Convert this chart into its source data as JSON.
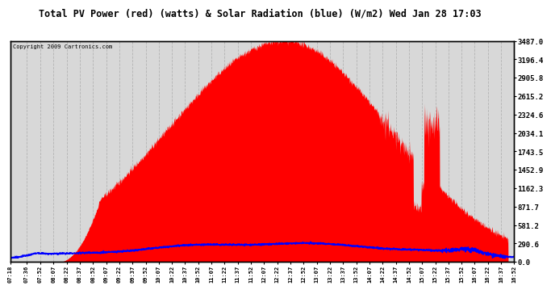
{
  "title": "Total PV Power (red) (watts) & Solar Radiation (blue) (W/m2) Wed Jan 28 17:03",
  "copyright": "Copyright 2009 Cartronics.com",
  "background_color": "#ffffff",
  "plot_bg_color": "#d8d8d8",
  "grid_color": "#aaaaaa",
  "right_yticks": [
    0.0,
    290.6,
    581.2,
    871.7,
    1162.3,
    1452.9,
    1743.5,
    2034.1,
    2324.6,
    2615.2,
    2905.8,
    3196.4,
    3487.0
  ],
  "ylim": [
    0,
    3487.0
  ],
  "pv_color": "#ff0000",
  "solar_color": "#0000ff",
  "pv_peak": 3487.0,
  "solar_peak": 290.0,
  "xtick_labels": [
    "07:18",
    "07:36",
    "07:52",
    "08:07",
    "08:22",
    "08:37",
    "08:52",
    "09:07",
    "09:22",
    "09:37",
    "09:52",
    "10:07",
    "10:22",
    "10:37",
    "10:52",
    "11:07",
    "11:22",
    "11:37",
    "11:52",
    "12:07",
    "12:22",
    "12:37",
    "12:52",
    "13:07",
    "13:22",
    "13:37",
    "13:52",
    "14:07",
    "14:22",
    "14:37",
    "14:52",
    "15:07",
    "15:22",
    "15:37",
    "15:52",
    "16:07",
    "16:22",
    "16:37",
    "16:52"
  ]
}
